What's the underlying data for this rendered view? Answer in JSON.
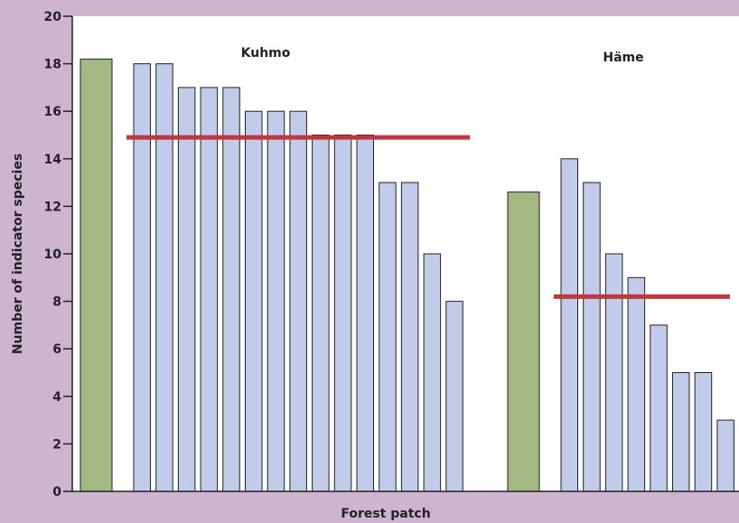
{
  "chart_data": {
    "type": "bar",
    "xlabel": "Forest patch",
    "ylabel": "Number of indicator species",
    "ylim": [
      0,
      20
    ],
    "yticks": [
      0,
      2,
      4,
      6,
      8,
      10,
      12,
      14,
      16,
      18,
      20
    ],
    "grid": false,
    "groups": [
      {
        "name": "Kuhmo",
        "reference_value": 18.2,
        "values": [
          18,
          18,
          17,
          17,
          17,
          16,
          16,
          16,
          15,
          15,
          15,
          13,
          13,
          10,
          8
        ],
        "mean": 14.9
      },
      {
        "name": "Häme",
        "reference_value": 12.6,
        "values": [
          14,
          13,
          10,
          9,
          7,
          5,
          5,
          3
        ],
        "mean": 8.2
      }
    ]
  },
  "colors": {
    "background": "#cdb5cd",
    "plot_area": "#ffffff",
    "reference_bar": "#a3b883",
    "patch_bar": "#c3cbeb",
    "mean_line": "#c0373f",
    "axis": "#222222"
  }
}
